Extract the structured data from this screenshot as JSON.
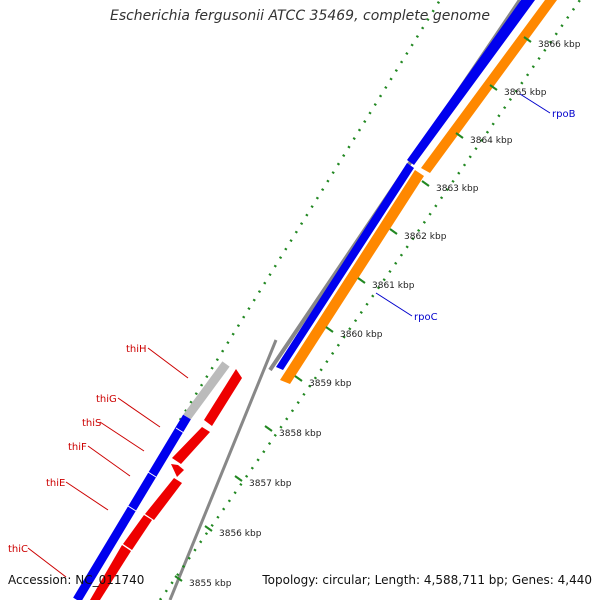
{
  "title": "Escherichia fergusonii ATCC 35469, complete genome",
  "footer": {
    "accession": "Accession: NC_011740",
    "summary": "Topology: circular; Length: 4,588,711 bp; Genes: 4,440"
  },
  "ticks": [
    {
      "label": "3855 kbp"
    },
    {
      "label": "3856 kbp"
    },
    {
      "label": "3857 kbp"
    },
    {
      "label": "3858 kbp"
    },
    {
      "label": "3859 kbp"
    },
    {
      "label": "3860 kbp"
    },
    {
      "label": "3861 kbp"
    },
    {
      "label": "3862 kbp"
    },
    {
      "label": "3863 kbp"
    },
    {
      "label": "3864 kbp"
    },
    {
      "label": "3865 kbp"
    },
    {
      "label": "3866 kbp"
    }
  ],
  "genes": [
    {
      "name": "thiH",
      "color": "#cc0000"
    },
    {
      "name": "thiG",
      "color": "#cc0000"
    },
    {
      "name": "thiS",
      "color": "#cc0000"
    },
    {
      "name": "thiF",
      "color": "#cc0000"
    },
    {
      "name": "thiE",
      "color": "#cc0000"
    },
    {
      "name": "thiC",
      "color": "#cc0000"
    },
    {
      "name": "rpoC",
      "color": "#0000cc"
    },
    {
      "name": "rpoB",
      "color": "#0000cc"
    }
  ],
  "colors": {
    "cds": "#0000ee",
    "gene_forward": "#ff8800",
    "gene_reverse": "#ee0000",
    "backbone": "#888888",
    "tick": "#228822",
    "pseudo": "#bbbbbb"
  }
}
